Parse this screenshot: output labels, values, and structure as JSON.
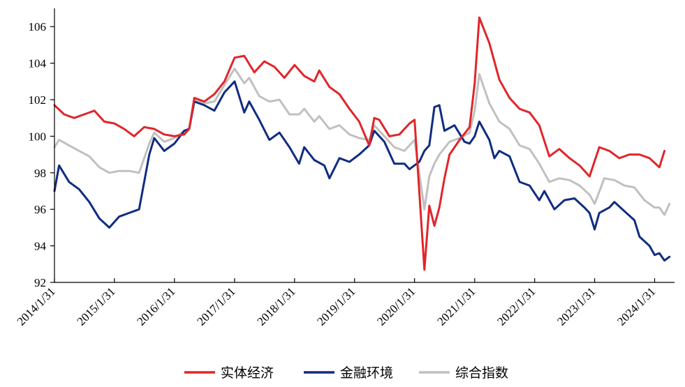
{
  "chart_data": {
    "type": "line",
    "ylim": [
      92,
      107
    ],
    "yticks": [
      92,
      94,
      96,
      98,
      100,
      102,
      104,
      106
    ],
    "x_axis": {
      "start": "2014/1/31",
      "end": "2024/5/31",
      "tick_labels": [
        "2014/1/31",
        "2015/1/31",
        "2016/1/31",
        "2017/1/31",
        "2018/1/31",
        "2019/1/31",
        "2020/1/31",
        "2021/1/31",
        "2022/1/31",
        "2023/1/31",
        "2024/1/31"
      ]
    },
    "grid": false,
    "legend_position": "bottom",
    "series": [
      {
        "name": "实体经济",
        "color": "#e0252a",
        "points": [
          [
            "2014/1/31",
            101.7
          ],
          [
            "2014/3/31",
            101.2
          ],
          [
            "2014/5/31",
            101.0
          ],
          [
            "2014/7/31",
            101.2
          ],
          [
            "2014/9/31",
            101.4
          ],
          [
            "2014/11/30",
            100.8
          ],
          [
            "2015/1/31",
            100.7
          ],
          [
            "2015/3/31",
            100.4
          ],
          [
            "2015/5/31",
            100.0
          ],
          [
            "2015/7/31",
            100.5
          ],
          [
            "2015/9/30",
            100.4
          ],
          [
            "2015/11/30",
            100.1
          ],
          [
            "2016/1/31",
            100.0
          ],
          [
            "2016/3/31",
            100.1
          ],
          [
            "2016/4/30",
            100.4
          ],
          [
            "2016/5/31",
            102.1
          ],
          [
            "2016/7/31",
            101.9
          ],
          [
            "2016/9/30",
            102.3
          ],
          [
            "2016/11/30",
            103.0
          ],
          [
            "2017/1/31",
            104.3
          ],
          [
            "2017/3/31",
            104.4
          ],
          [
            "2017/5/31",
            103.5
          ],
          [
            "2017/7/31",
            104.1
          ],
          [
            "2017/9/30",
            103.8
          ],
          [
            "2017/11/30",
            103.2
          ],
          [
            "2018/1/31",
            103.9
          ],
          [
            "2018/3/31",
            103.3
          ],
          [
            "2018/5/31",
            103.0
          ],
          [
            "2018/6/30",
            103.6
          ],
          [
            "2018/8/31",
            102.7
          ],
          [
            "2018/10/31",
            102.3
          ],
          [
            "2018/12/31",
            101.5
          ],
          [
            "2019/2/28",
            100.8
          ],
          [
            "2019/4/30",
            99.5
          ],
          [
            "2019/5/31",
            101.0
          ],
          [
            "2019/6/30",
            100.9
          ],
          [
            "2019/8/31",
            100.0
          ],
          [
            "2019/10/31",
            100.1
          ],
          [
            "2019/12/31",
            100.7
          ],
          [
            "2020/1/31",
            100.9
          ],
          [
            "2020/3/31",
            92.7
          ],
          [
            "2020/4/30",
            96.2
          ],
          [
            "2020/5/31",
            95.1
          ],
          [
            "2020/6/30",
            96.1
          ],
          [
            "2020/7/31",
            97.7
          ],
          [
            "2020/8/31",
            99.0
          ],
          [
            "2020/10/31",
            99.8
          ],
          [
            "2020/12/31",
            100.5
          ],
          [
            "2021/1/31",
            102.9
          ],
          [
            "2021/2/28",
            106.5
          ],
          [
            "2021/4/30",
            105.1
          ],
          [
            "2021/6/30",
            103.1
          ],
          [
            "2021/8/31",
            102.1
          ],
          [
            "2021/10/31",
            101.5
          ],
          [
            "2021/12/31",
            101.3
          ],
          [
            "2022/2/28",
            100.6
          ],
          [
            "2022/4/30",
            98.9
          ],
          [
            "2022/6/30",
            99.3
          ],
          [
            "2022/8/31",
            98.8
          ],
          [
            "2022/10/31",
            98.4
          ],
          [
            "2022/12/31",
            97.8
          ],
          [
            "2023/2/28",
            99.4
          ],
          [
            "2023/4/30",
            99.2
          ],
          [
            "2023/6/30",
            98.8
          ],
          [
            "2023/8/31",
            99.0
          ],
          [
            "2023/10/31",
            99.0
          ],
          [
            "2023/12/31",
            98.8
          ],
          [
            "2024/2/29",
            98.3
          ],
          [
            "2024/3/31",
            99.2
          ]
        ]
      },
      {
        "name": "金融环境",
        "color": "#0f2c80",
        "points": [
          [
            "2014/1/31",
            97.0
          ],
          [
            "2014/2/28",
            98.4
          ],
          [
            "2014/4/30",
            97.5
          ],
          [
            "2014/6/30",
            97.1
          ],
          [
            "2014/8/31",
            96.4
          ],
          [
            "2014/10/31",
            95.5
          ],
          [
            "2014/12/31",
            95.0
          ],
          [
            "2015/2/28",
            95.6
          ],
          [
            "2015/4/30",
            95.8
          ],
          [
            "2015/6/30",
            96.0
          ],
          [
            "2015/8/31",
            99.0
          ],
          [
            "2015/9/30",
            99.9
          ],
          [
            "2015/11/30",
            99.2
          ],
          [
            "2016/1/31",
            99.6
          ],
          [
            "2016/3/31",
            100.3
          ],
          [
            "2016/4/30",
            100.4
          ],
          [
            "2016/5/31",
            101.9
          ],
          [
            "2016/7/31",
            101.7
          ],
          [
            "2016/9/30",
            101.4
          ],
          [
            "2016/11/30",
            102.4
          ],
          [
            "2017/1/31",
            103.0
          ],
          [
            "2017/3/31",
            101.3
          ],
          [
            "2017/4/30",
            101.9
          ],
          [
            "2017/6/30",
            100.9
          ],
          [
            "2017/8/31",
            99.8
          ],
          [
            "2017/10/31",
            100.2
          ],
          [
            "2017/12/31",
            99.4
          ],
          [
            "2018/2/28",
            98.5
          ],
          [
            "2018/3/31",
            99.4
          ],
          [
            "2018/5/31",
            98.7
          ],
          [
            "2018/7/31",
            98.4
          ],
          [
            "2018/8/31",
            97.7
          ],
          [
            "2018/10/31",
            98.8
          ],
          [
            "2018/12/31",
            98.6
          ],
          [
            "2019/2/28",
            99.0
          ],
          [
            "2019/4/30",
            99.5
          ],
          [
            "2019/5/31",
            100.3
          ],
          [
            "2019/7/31",
            99.7
          ],
          [
            "2019/9/30",
            98.5
          ],
          [
            "2019/11/30",
            98.5
          ],
          [
            "2019/12/31",
            98.2
          ],
          [
            "2020/2/29",
            98.6
          ],
          [
            "2020/3/31",
            99.2
          ],
          [
            "2020/4/30",
            99.5
          ],
          [
            "2020/5/31",
            101.6
          ],
          [
            "2020/6/30",
            101.7
          ],
          [
            "2020/7/31",
            100.3
          ],
          [
            "2020/9/30",
            100.6
          ],
          [
            "2020/11/30",
            99.7
          ],
          [
            "2020/12/31",
            99.6
          ],
          [
            "2021/1/31",
            100.0
          ],
          [
            "2021/2/28",
            100.8
          ],
          [
            "2021/4/30",
            99.8
          ],
          [
            "2021/5/31",
            98.8
          ],
          [
            "2021/6/30",
            99.2
          ],
          [
            "2021/8/31",
            98.9
          ],
          [
            "2021/10/31",
            97.5
          ],
          [
            "2021/12/31",
            97.3
          ],
          [
            "2022/2/28",
            96.5
          ],
          [
            "2022/3/31",
            97.0
          ],
          [
            "2022/5/31",
            96.0
          ],
          [
            "2022/7/31",
            96.5
          ],
          [
            "2022/9/30",
            96.6
          ],
          [
            "2022/11/30",
            96.1
          ],
          [
            "2022/12/31",
            95.8
          ],
          [
            "2023/1/31",
            94.9
          ],
          [
            "2023/2/28",
            95.8
          ],
          [
            "2023/4/30",
            96.1
          ],
          [
            "2023/5/31",
            96.4
          ],
          [
            "2023/7/31",
            95.9
          ],
          [
            "2023/9/30",
            95.4
          ],
          [
            "2023/10/31",
            94.5
          ],
          [
            "2023/12/31",
            94.0
          ],
          [
            "2024/1/31",
            93.5
          ],
          [
            "2024/2/29",
            93.6
          ],
          [
            "2024/3/31",
            93.2
          ],
          [
            "2024/4/30",
            93.4
          ]
        ]
      },
      {
        "name": "综合指数",
        "color": "#c0c0c0",
        "points": [
          [
            "2014/1/31",
            99.4
          ],
          [
            "2014/2/28",
            99.8
          ],
          [
            "2014/4/30",
            99.5
          ],
          [
            "2014/6/30",
            99.2
          ],
          [
            "2014/8/31",
            98.9
          ],
          [
            "2014/10/31",
            98.3
          ],
          [
            "2014/12/31",
            98.0
          ],
          [
            "2015/2/28",
            98.1
          ],
          [
            "2015/4/30",
            98.1
          ],
          [
            "2015/6/30",
            98.0
          ],
          [
            "2015/8/31",
            99.6
          ],
          [
            "2015/9/30",
            100.2
          ],
          [
            "2015/11/30",
            99.7
          ],
          [
            "2016/1/31",
            99.9
          ],
          [
            "2016/3/31",
            100.3
          ],
          [
            "2016/4/30",
            100.4
          ],
          [
            "2016/5/31",
            102.0
          ],
          [
            "2016/7/31",
            101.8
          ],
          [
            "2016/9/30",
            101.9
          ],
          [
            "2016/11/30",
            102.8
          ],
          [
            "2017/1/31",
            103.7
          ],
          [
            "2017/3/31",
            102.9
          ],
          [
            "2017/4/30",
            103.2
          ],
          [
            "2017/6/30",
            102.2
          ],
          [
            "2017/8/31",
            101.9
          ],
          [
            "2017/10/31",
            102.0
          ],
          [
            "2017/12/31",
            101.2
          ],
          [
            "2018/2/28",
            101.2
          ],
          [
            "2018/3/31",
            101.5
          ],
          [
            "2018/5/31",
            100.8
          ],
          [
            "2018/6/30",
            101.1
          ],
          [
            "2018/8/31",
            100.4
          ],
          [
            "2018/10/31",
            100.6
          ],
          [
            "2018/12/31",
            100.1
          ],
          [
            "2019/2/28",
            99.9
          ],
          [
            "2019/4/30",
            99.8
          ],
          [
            "2019/5/31",
            100.6
          ],
          [
            "2019/7/31",
            100.0
          ],
          [
            "2019/9/30",
            99.4
          ],
          [
            "2019/11/30",
            99.2
          ],
          [
            "2019/12/31",
            99.5
          ],
          [
            "2020/1/31",
            99.8
          ],
          [
            "2020/3/31",
            96.0
          ],
          [
            "2020/4/30",
            97.8
          ],
          [
            "2020/5/31",
            98.5
          ],
          [
            "2020/6/30",
            99.0
          ],
          [
            "2020/8/31",
            99.7
          ],
          [
            "2020/10/31",
            99.9
          ],
          [
            "2020/12/31",
            100.2
          ],
          [
            "2021/1/31",
            101.4
          ],
          [
            "2021/2/28",
            103.4
          ],
          [
            "2021/4/30",
            101.8
          ],
          [
            "2021/6/30",
            100.8
          ],
          [
            "2021/8/31",
            100.4
          ],
          [
            "2021/10/31",
            99.5
          ],
          [
            "2021/12/31",
            99.3
          ],
          [
            "2022/2/28",
            98.5
          ],
          [
            "2022/4/30",
            97.5
          ],
          [
            "2022/6/30",
            97.7
          ],
          [
            "2022/8/31",
            97.6
          ],
          [
            "2022/10/31",
            97.3
          ],
          [
            "2022/12/31",
            96.8
          ],
          [
            "2023/1/31",
            96.3
          ],
          [
            "2023/3/31",
            97.7
          ],
          [
            "2023/5/31",
            97.6
          ],
          [
            "2023/7/31",
            97.3
          ],
          [
            "2023/9/30",
            97.2
          ],
          [
            "2023/11/30",
            96.5
          ],
          [
            "2024/1/31",
            96.1
          ],
          [
            "2024/2/29",
            96.1
          ],
          [
            "2024/3/31",
            95.7
          ],
          [
            "2024/4/30",
            96.3
          ]
        ]
      }
    ]
  }
}
